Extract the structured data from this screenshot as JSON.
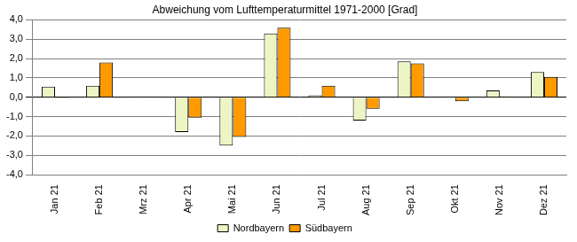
{
  "chart_data": {
    "type": "bar",
    "title": "Abweichung vom Lufttemperaturmittel 1971-2000 [Grad]",
    "categories": [
      "Jan 21",
      "Feb 21",
      "Mrz 21",
      "Apr 21",
      "Mai 21",
      "Jun 21",
      "Jul 21",
      "Aug 21",
      "Sep 21",
      "Okt 21",
      "Nov 21",
      "Dez 21"
    ],
    "series": [
      {
        "name": "Nordbayern",
        "color": "#eef5c4",
        "values": [
          0.55,
          0.6,
          0.05,
          -1.8,
          -2.5,
          3.3,
          0.1,
          -1.2,
          1.85,
          0.05,
          0.35,
          1.3
        ]
      },
      {
        "name": "Südbayern",
        "color": "#ff9a00",
        "values": [
          -0.05,
          1.8,
          0.05,
          -1.05,
          -2.05,
          3.6,
          0.6,
          -0.6,
          1.75,
          -0.2,
          0.05,
          1.05
        ]
      }
    ],
    "ylim": [
      -4,
      4
    ],
    "yticks": [
      {
        "value": -4,
        "label": "-4,0"
      },
      {
        "value": -3,
        "label": "-3,0"
      },
      {
        "value": -2,
        "label": "-2,0"
      },
      {
        "value": -1,
        "label": "-1,0"
      },
      {
        "value": 0,
        "label": "0,0"
      },
      {
        "value": 1,
        "label": "1,0"
      },
      {
        "value": 2,
        "label": "2,0"
      },
      {
        "value": 3,
        "label": "3,0"
      },
      {
        "value": 4,
        "label": "4,0"
      }
    ],
    "grid": true,
    "legend": "bottom"
  }
}
